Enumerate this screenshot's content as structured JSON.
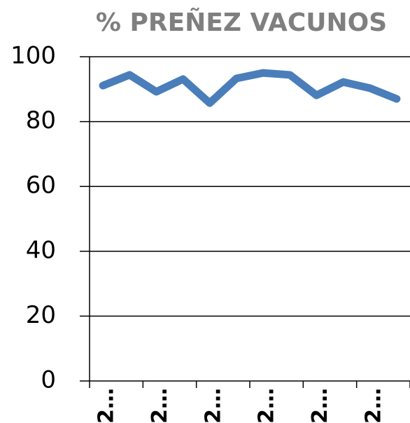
{
  "chart_data": {
    "type": "line",
    "title": "% PREÑEZ VACUNOS",
    "categories": [
      "2…",
      null,
      "2…",
      null,
      "2…",
      null,
      "2…",
      null,
      "2…",
      null,
      "2…",
      null
    ],
    "series": [
      {
        "name": null,
        "color": "#4a7ebb",
        "values": [
          91.1,
          94.4,
          89.2,
          93.1,
          85.7,
          93.3,
          95.0,
          94.4,
          88.1,
          92.2,
          90.3,
          87.0
        ]
      }
    ],
    "ylim": [
      0,
      100
    ],
    "yticks": [
      0,
      20,
      40,
      60,
      80,
      100
    ],
    "grid": true
  }
}
